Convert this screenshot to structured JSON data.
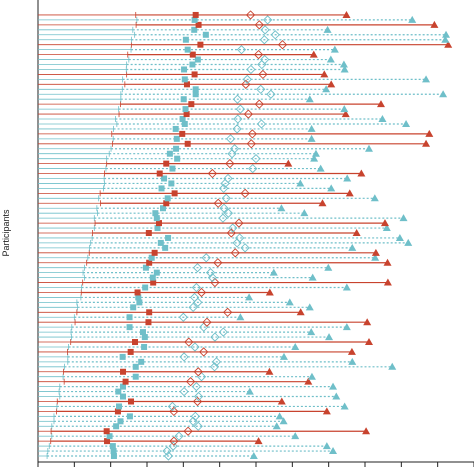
{
  "chart_data": {
    "type": "swimmer",
    "title": "",
    "xlabel": "",
    "ylabel": "Participants",
    "legend": "none",
    "grid": false,
    "colors": {
      "group_a": "#c8432e",
      "group_b": "#6fbfc9",
      "axis": "#222222"
    },
    "ylim": [
      0,
      90
    ],
    "xlim": [
      0,
      12
    ],
    "marker_legend": {
      "start_tick": "plus",
      "event": "square",
      "milestone": "diamond",
      "end": "triangle"
    },
    "note": "",
    "participants": []
  }
}
